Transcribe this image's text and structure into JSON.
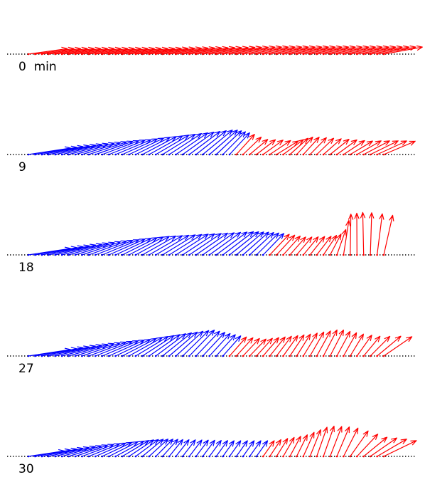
{
  "figure": {
    "colors": {
      "first_segment": "#0000ff",
      "second_segment": "#ff0000",
      "baseline": "#000000"
    },
    "panels": [
      {
        "label": "0  min",
        "vectors": {
          "count": 54,
          "split": 0,
          "knots": [
            [
              0,
              0.92,
              0.14
            ],
            [
              0.3,
              0.92,
              0.14
            ],
            [
              0.6,
              0.92,
              0.18
            ],
            [
              1.0,
              0.92,
              0.18
            ]
          ]
        }
      },
      {
        "label": "9",
        "vectors": {
          "count": 54,
          "split": 31,
          "knots": [
            [
              0,
              1.0,
              0.15
            ],
            [
              0.25,
              0.9,
              0.4
            ],
            [
              0.5,
              0.9,
              0.7
            ],
            [
              0.58,
              0.65,
              0.85
            ],
            [
              0.62,
              0.55,
              0.7
            ],
            [
              0.7,
              0.6,
              0.55
            ],
            [
              0.76,
              0.55,
              0.85
            ],
            [
              0.82,
              0.55,
              0.75
            ],
            [
              0.9,
              0.6,
              0.55
            ],
            [
              1.0,
              0.8,
              0.4
            ]
          ]
        }
      },
      {
        "label": "18",
        "vectors": {
          "count": 54,
          "split": 36,
          "knots": [
            [
              0,
              1.0,
              0.15
            ],
            [
              0.3,
              0.9,
              0.5
            ],
            [
              0.55,
              0.9,
              0.65
            ],
            [
              0.66,
              0.7,
              0.8
            ],
            [
              0.74,
              0.55,
              0.85
            ],
            [
              0.82,
              0.55,
              0.92
            ],
            [
              0.86,
              0.55,
              1.15
            ],
            [
              0.9,
              0.95,
              1.55
            ],
            [
              0.95,
              1.0,
              1.6
            ],
            [
              1.0,
              0.95,
              1.35
            ]
          ]
        }
      },
      {
        "label": "27",
        "vectors": {
          "count": 54,
          "split": 30,
          "knots": [
            [
              0,
              1.0,
              0.15
            ],
            [
              0.25,
              0.9,
              0.45
            ],
            [
              0.45,
              0.85,
              0.8
            ],
            [
              0.56,
              0.6,
              0.85
            ],
            [
              0.62,
              0.55,
              0.8
            ],
            [
              0.75,
              0.6,
              1.0
            ],
            [
              0.84,
              0.7,
              1.1
            ],
            [
              0.9,
              0.6,
              1.05
            ],
            [
              0.95,
              0.6,
              0.85
            ],
            [
              1.0,
              0.8,
              0.6
            ]
          ]
        }
      },
      {
        "label": "30",
        "vectors": {
          "count": 54,
          "split": 35,
          "knots": [
            [
              0,
              0.85,
              0.15
            ],
            [
              0.25,
              0.75,
              0.5
            ],
            [
              0.4,
              0.5,
              0.9
            ],
            [
              0.55,
              0.45,
              0.95
            ],
            [
              0.66,
              0.45,
              0.95
            ],
            [
              0.75,
              0.55,
              1.1
            ],
            [
              0.82,
              0.75,
              1.25
            ],
            [
              0.88,
              0.75,
              1.15
            ],
            [
              0.94,
              0.7,
              0.7
            ],
            [
              1.0,
              0.85,
              0.45
            ]
          ]
        }
      }
    ]
  }
}
